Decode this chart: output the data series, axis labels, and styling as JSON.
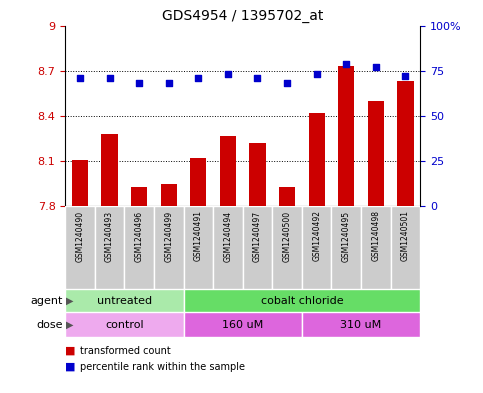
{
  "title": "GDS4954 / 1395702_at",
  "samples": [
    "GSM1240490",
    "GSM1240493",
    "GSM1240496",
    "GSM1240499",
    "GSM1240491",
    "GSM1240494",
    "GSM1240497",
    "GSM1240500",
    "GSM1240492",
    "GSM1240495",
    "GSM1240498",
    "GSM1240501"
  ],
  "transformed_count": [
    8.11,
    8.28,
    7.93,
    7.95,
    8.12,
    8.27,
    8.22,
    7.93,
    8.42,
    8.73,
    8.5,
    8.63
  ],
  "percentile_rank": [
    71,
    71,
    68,
    68,
    71,
    73,
    71,
    68,
    73,
    79,
    77,
    72
  ],
  "ymin": 7.8,
  "ymax": 9.0,
  "yticks": [
    7.8,
    8.1,
    8.4,
    8.7,
    9.0
  ],
  "ytick_labels": [
    "7.8",
    "8.1",
    "8.4",
    "8.7",
    "9"
  ],
  "y2min": 0,
  "y2max": 100,
  "y2ticks": [
    0,
    25,
    50,
    75,
    100
  ],
  "y2tick_labels": [
    "0",
    "25",
    "50",
    "75",
    "100%"
  ],
  "bar_color": "#cc0000",
  "dot_color": "#0000cc",
  "bar_bottom": 7.8,
  "agent_groups": [
    {
      "label": "untreated",
      "start": 0,
      "end": 4,
      "color": "#aaeaaa"
    },
    {
      "label": "cobalt chloride",
      "start": 4,
      "end": 12,
      "color": "#66dd66"
    }
  ],
  "dose_groups": [
    {
      "label": "control",
      "start": 0,
      "end": 4,
      "color": "#eeaaee"
    },
    {
      "label": "160 uM",
      "start": 4,
      "end": 8,
      "color": "#dd66dd"
    },
    {
      "label": "310 uM",
      "start": 8,
      "end": 12,
      "color": "#dd66dd"
    }
  ],
  "legend_bar_label": "transformed count",
  "legend_dot_label": "percentile rank within the sample",
  "tick_label_color_left": "#cc0000",
  "tick_label_color_right": "#0000cc",
  "sample_box_color": "#cccccc",
  "arrow_color": "#555555"
}
